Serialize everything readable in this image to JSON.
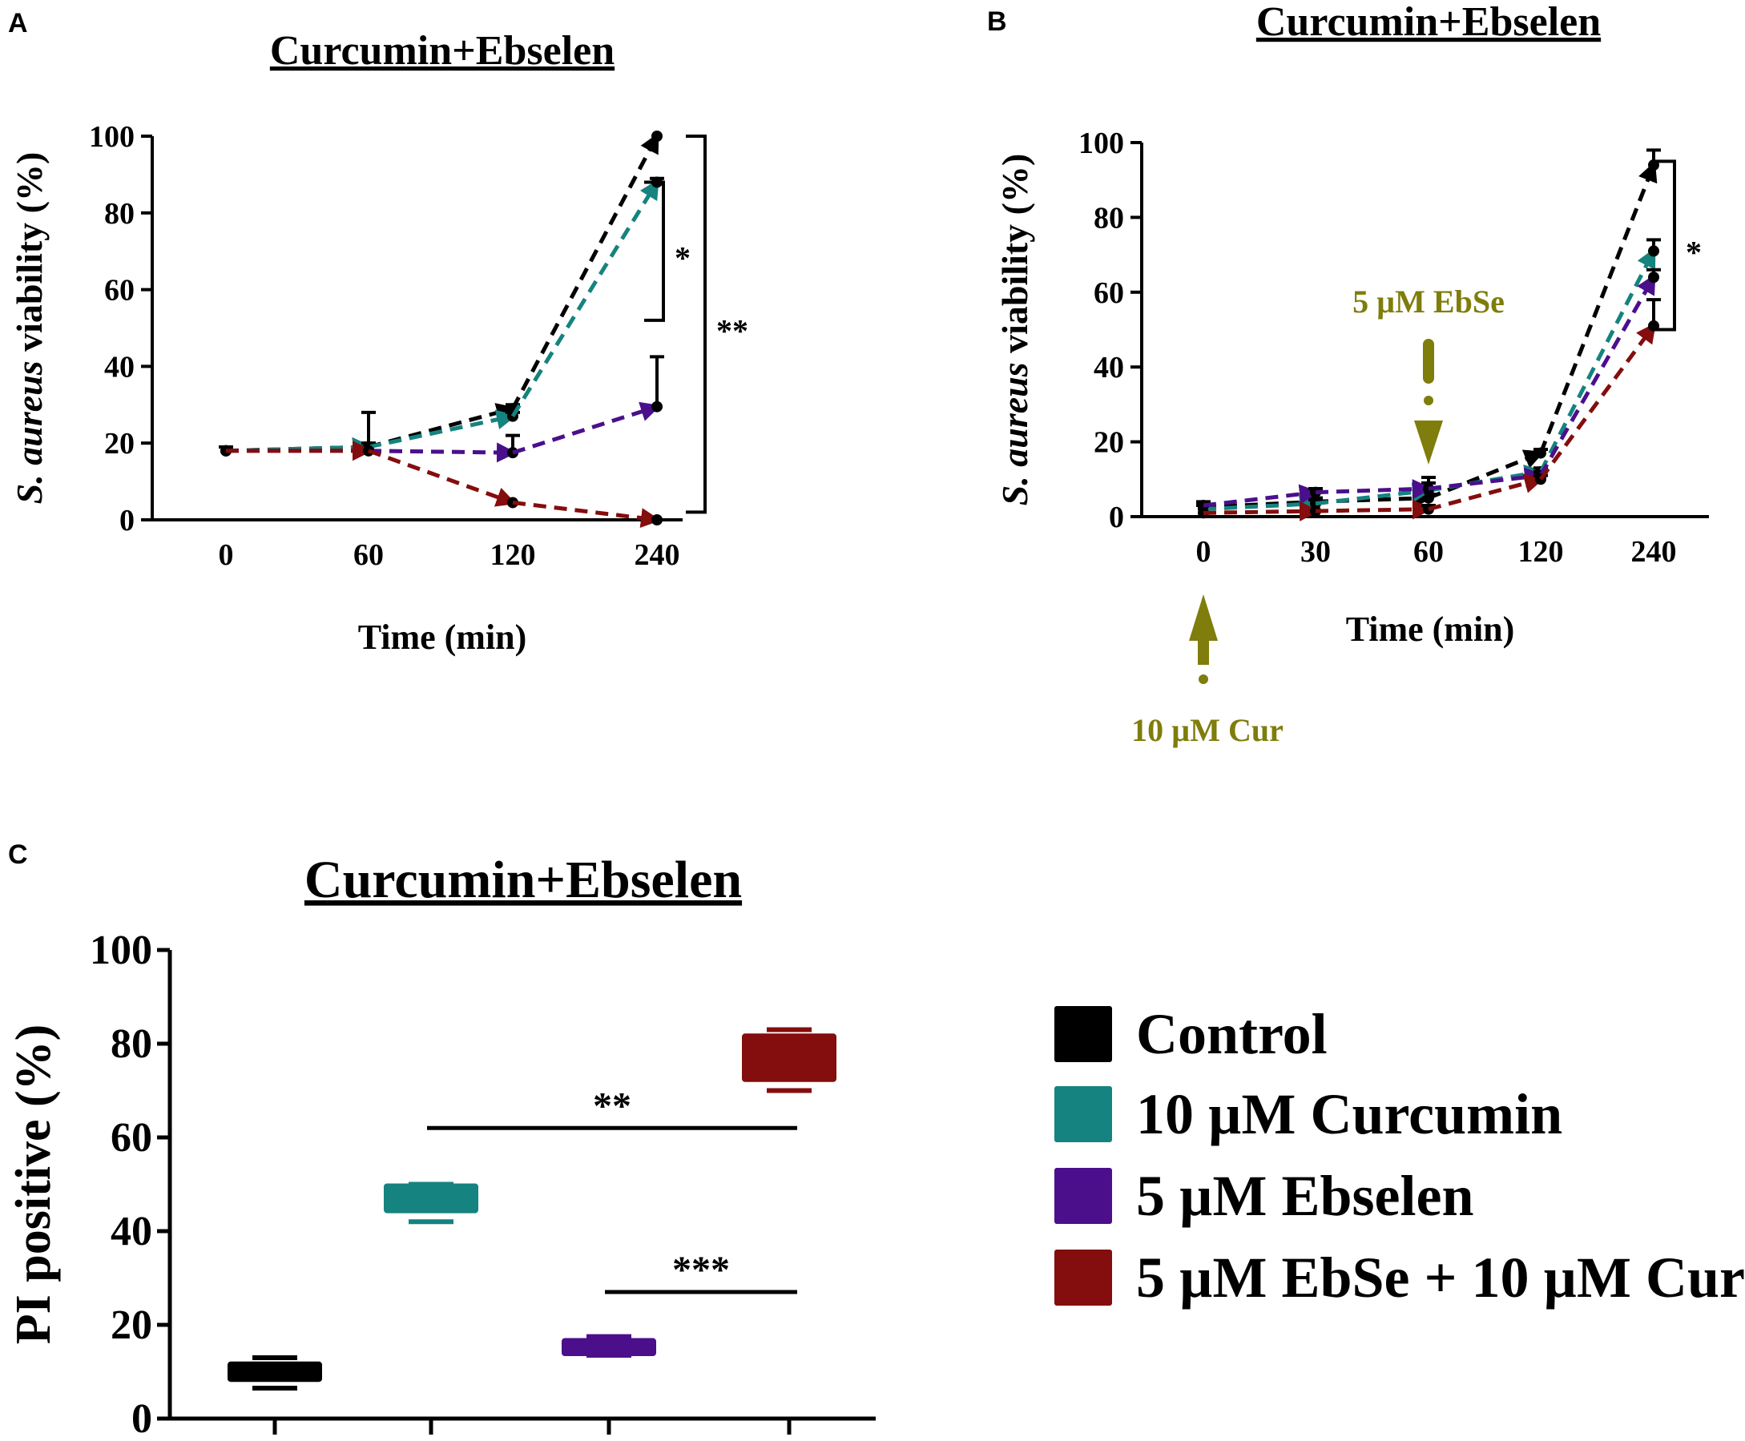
{
  "colors": {
    "control": "#000000",
    "curcumin": "#15837f",
    "ebselen": "#4b0f8c",
    "combo": "#840d0d",
    "annotation": "#7f7d0b"
  },
  "chart_data": [
    {
      "panel": "A",
      "type": "line",
      "title": "Curcumin+Ebselen",
      "xlabel": "Time (min)",
      "ylabel_italic": "S. aureus",
      "ylabel_rest": " viability (%)",
      "categories": [
        "0",
        "60",
        "120",
        "240"
      ],
      "yticks": [
        "0",
        "20",
        "40",
        "60",
        "80",
        "100"
      ],
      "ylim": [
        0,
        100
      ],
      "series": [
        {
          "name": "Control",
          "color_key": "control",
          "values": [
            18,
            19,
            29,
            100
          ],
          "errors": [
            1,
            1,
            1,
            0
          ]
        },
        {
          "name": "10 µM Curcumin",
          "color_key": "curcumin",
          "values": [
            18,
            19,
            27,
            88
          ],
          "errors": [
            1,
            1,
            1,
            1
          ]
        },
        {
          "name": "5 µM Ebselen",
          "color_key": "ebselen",
          "values": [
            18,
            18,
            17.5,
            29.5
          ],
          "errors": [
            1,
            10,
            4.5,
            13
          ]
        },
        {
          "name": "5 µM EbSe + 10 µM Cur",
          "color_key": "combo",
          "values": [
            18,
            18,
            4.5,
            0
          ],
          "errors": [
            0,
            0,
            0,
            0
          ]
        }
      ],
      "brackets": [
        {
          "label": "*",
          "y_from": 52,
          "y_to": 88
        },
        {
          "label": "**",
          "y_from": 2,
          "y_to": 100
        }
      ]
    },
    {
      "panel": "B",
      "type": "line",
      "title": "Curcumin+Ebselen",
      "xlabel": "Time (min)",
      "ylabel_italic": "S. aureus",
      "ylabel_rest": " viability (%)",
      "categories": [
        "0",
        "30",
        "60",
        "120",
        "240"
      ],
      "yticks": [
        "0",
        "20",
        "40",
        "60",
        "80",
        "100"
      ],
      "ylim": [
        0,
        100
      ],
      "series": [
        {
          "name": "Control",
          "color_key": "control",
          "values": [
            2.5,
            4,
            5,
            17,
            94
          ],
          "errors": [
            1,
            1,
            1,
            1,
            4
          ]
        },
        {
          "name": "10 µM Curcumin",
          "color_key": "curcumin",
          "values": [
            2,
            3.5,
            7,
            12,
            71
          ],
          "errors": [
            1,
            1,
            2,
            1,
            3
          ]
        },
        {
          "name": "5 µM Ebselen",
          "color_key": "ebselen",
          "values": [
            3,
            6.5,
            7.5,
            11,
            64
          ],
          "errors": [
            1,
            1,
            3,
            1,
            2
          ]
        },
        {
          "name": "5 µM EbSe + 10 µM Cur",
          "color_key": "combo",
          "values": [
            1,
            1.5,
            2,
            10,
            51
          ],
          "errors": [
            0,
            0,
            1,
            1,
            7
          ]
        }
      ],
      "brackets": [
        {
          "label": "*",
          "y_from": 50,
          "y_to": 95
        }
      ],
      "annotations": [
        {
          "label": "5 µM EbSe",
          "at_category": "60",
          "direction": "down"
        },
        {
          "label": "10 µM Cur",
          "at_category": "0",
          "direction": "up"
        }
      ]
    },
    {
      "panel": "C",
      "type": "bar",
      "title": "Curcumin+Ebselen",
      "ylabel": "PI positive (%)",
      "yticks": [
        "0",
        "20",
        "40",
        "60",
        "80",
        "100"
      ],
      "ylim": [
        0,
        100
      ],
      "categories": [
        "Control",
        "10 µM Curcumin",
        "5 µM Ebselen",
        "5 µM EbSe + 10 µM Cur"
      ],
      "boxes": [
        {
          "name": "Control",
          "color_key": "control",
          "low": 8,
          "high": 12,
          "whisker_low": 6.5,
          "whisker_high": 13
        },
        {
          "name": "10 µM Curcumin",
          "color_key": "curcumin",
          "low": 44,
          "high": 50,
          "whisker_low": 42,
          "whisker_high": 50
        },
        {
          "name": "5 µM Ebselen",
          "color_key": "ebselen",
          "low": 13.5,
          "high": 17,
          "whisker_low": 13.5,
          "whisker_high": 17.5
        },
        {
          "name": "5 µM EbSe + 10 µM Cur",
          "color_key": "combo",
          "low": 72,
          "high": 82,
          "whisker_low": 70,
          "whisker_high": 83
        }
      ],
      "significance": [
        {
          "label": "**",
          "from_index": 1,
          "to_index": 3,
          "y": 62
        },
        {
          "label": "***",
          "from_index": 2,
          "to_index": 3,
          "y": 27
        }
      ]
    }
  ],
  "panels": {
    "a": "A",
    "b": "B",
    "c": "C"
  },
  "legend": [
    {
      "label": "Control",
      "color_key": "control"
    },
    {
      "label": "10 µM Curcumin",
      "color_key": "curcumin"
    },
    {
      "label": "5 µM Ebselen",
      "color_key": "ebselen"
    },
    {
      "label": "5 µM EbSe + 10 µM Cur",
      "color_key": "combo"
    }
  ]
}
